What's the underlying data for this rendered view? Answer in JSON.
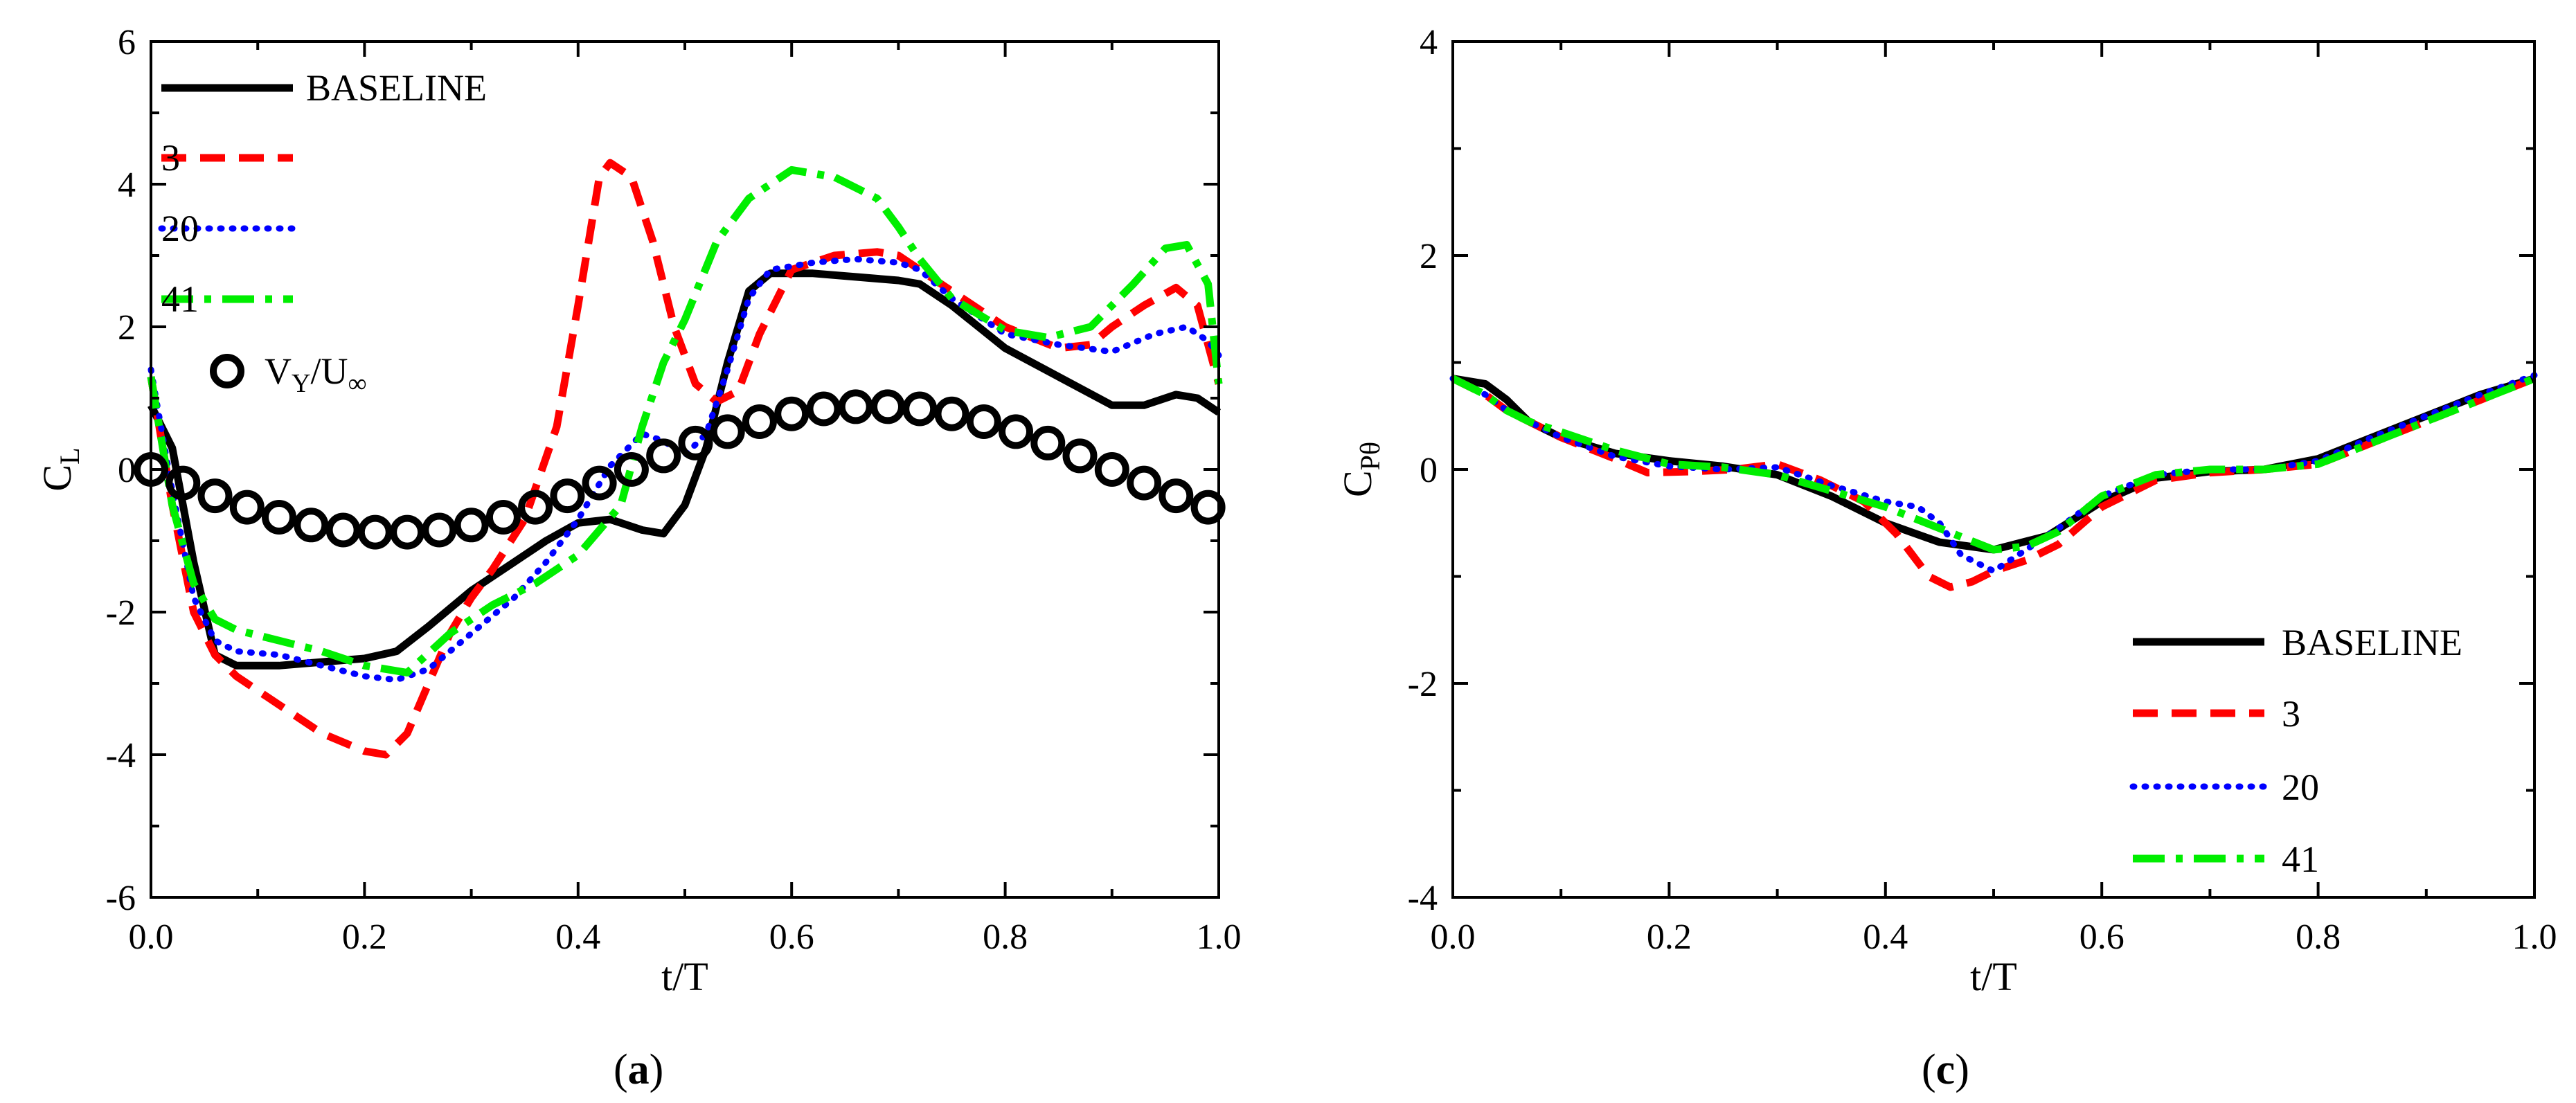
{
  "chart_data": [
    {
      "type": "line",
      "panel_label": "(a)",
      "panel_letter": "a",
      "xlabel": "t/T",
      "ylabel": "C",
      "ylabel_sub": "L",
      "xlim": [
        0,
        1
      ],
      "ylim": [
        -6,
        6
      ],
      "xticks": [
        0,
        0.2,
        0.4,
        0.6,
        0.8,
        1.0
      ],
      "xtick_labels": [
        "0.0",
        "0.2",
        "0.4",
        "0.6",
        "0.8",
        "1.0"
      ],
      "yticks": [
        -6,
        -4,
        -2,
        0,
        2,
        4,
        6
      ],
      "ytick_labels": [
        "-6",
        "-4",
        "-2",
        "0",
        "2",
        "4",
        "6"
      ],
      "legend_position": "top-left",
      "series": [
        {
          "name": "BASELINE",
          "color": "#000000",
          "style": "solid",
          "x": [
            0,
            0.02,
            0.04,
            0.06,
            0.08,
            0.12,
            0.16,
            0.2,
            0.23,
            0.26,
            0.3,
            0.34,
            0.37,
            0.4,
            0.43,
            0.46,
            0.48,
            0.5,
            0.52,
            0.54,
            0.56,
            0.58,
            0.62,
            0.66,
            0.7,
            0.72,
            0.75,
            0.8,
            0.85,
            0.9,
            0.93,
            0.96,
            0.98,
            1.0
          ],
          "y": [
            0.9,
            0.3,
            -1.3,
            -2.6,
            -2.75,
            -2.75,
            -2.7,
            -2.65,
            -2.55,
            -2.2,
            -1.7,
            -1.3,
            -1.0,
            -0.75,
            -0.7,
            -0.85,
            -0.9,
            -0.5,
            0.3,
            1.5,
            2.5,
            2.75,
            2.75,
            2.7,
            2.65,
            2.6,
            2.3,
            1.7,
            1.3,
            0.9,
            0.9,
            1.05,
            1.0,
            0.8
          ]
        },
        {
          "name": "3",
          "color": "#ff0000",
          "style": "dashed",
          "x": [
            0,
            0.02,
            0.04,
            0.06,
            0.08,
            0.12,
            0.16,
            0.2,
            0.22,
            0.24,
            0.26,
            0.28,
            0.3,
            0.32,
            0.35,
            0.38,
            0.4,
            0.42,
            0.43,
            0.45,
            0.47,
            0.49,
            0.51,
            0.53,
            0.55,
            0.57,
            0.6,
            0.64,
            0.68,
            0.7,
            0.72,
            0.75,
            0.8,
            0.85,
            0.88,
            0.9,
            0.93,
            0.96,
            0.98,
            1.0
          ],
          "y": [
            1.3,
            -0.5,
            -2.0,
            -2.6,
            -2.9,
            -3.3,
            -3.7,
            -3.95,
            -4.0,
            -3.7,
            -3.0,
            -2.3,
            -1.8,
            -1.4,
            -0.7,
            0.6,
            2.3,
            4.1,
            4.3,
            4.1,
            3.2,
            2.0,
            1.2,
            0.95,
            1.1,
            1.9,
            2.8,
            3.0,
            3.05,
            3.0,
            2.8,
            2.5,
            2.0,
            1.7,
            1.75,
            2.0,
            2.3,
            2.55,
            2.3,
            1.2
          ]
        },
        {
          "name": "20",
          "color": "#0000ff",
          "style": "dotted",
          "x": [
            0,
            0.02,
            0.04,
            0.06,
            0.08,
            0.12,
            0.16,
            0.2,
            0.23,
            0.26,
            0.3,
            0.34,
            0.37,
            0.4,
            0.43,
            0.46,
            0.48,
            0.5,
            0.52,
            0.54,
            0.56,
            0.58,
            0.62,
            0.66,
            0.7,
            0.72,
            0.75,
            0.8,
            0.85,
            0.9,
            0.94,
            0.97,
            0.99,
            1.0
          ],
          "y": [
            1.4,
            -0.3,
            -1.8,
            -2.4,
            -2.55,
            -2.6,
            -2.75,
            -2.9,
            -2.95,
            -2.8,
            -2.3,
            -1.8,
            -1.3,
            -0.7,
            0.05,
            0.5,
            0.4,
            0.2,
            0.5,
            1.4,
            2.4,
            2.8,
            2.9,
            2.95,
            2.9,
            2.8,
            2.4,
            1.9,
            1.75,
            1.65,
            1.9,
            2.0,
            1.8,
            1.6
          ]
        },
        {
          "name": "41",
          "color": "#00ee00",
          "style": "dashdot",
          "x": [
            0,
            0.02,
            0.04,
            0.06,
            0.08,
            0.12,
            0.16,
            0.2,
            0.24,
            0.28,
            0.32,
            0.36,
            0.4,
            0.44,
            0.46,
            0.48,
            0.5,
            0.53,
            0.56,
            0.6,
            0.64,
            0.68,
            0.7,
            0.72,
            0.75,
            0.8,
            0.84,
            0.88,
            0.92,
            0.95,
            0.97,
            0.99,
            1.0
          ],
          "y": [
            1.3,
            -0.5,
            -1.6,
            -2.1,
            -2.25,
            -2.4,
            -2.55,
            -2.75,
            -2.85,
            -2.3,
            -1.9,
            -1.6,
            -1.2,
            -0.5,
            0.6,
            1.5,
            2.1,
            3.2,
            3.8,
            4.2,
            4.1,
            3.8,
            3.4,
            2.95,
            2.4,
            1.95,
            1.85,
            2.0,
            2.6,
            3.1,
            3.15,
            2.6,
            1.2
          ]
        },
        {
          "name": "V<sub>Y</sub>/U<sub>∞</sub>",
          "label_main": "V",
          "label_sub1": "Y",
          "label_mid": "/U",
          "label_sub2": "∞",
          "color": "#000000",
          "style": "circles",
          "x": [
            0,
            0.03,
            0.06,
            0.09,
            0.12,
            0.15,
            0.18,
            0.21,
            0.24,
            0.27,
            0.3,
            0.33,
            0.36,
            0.39,
            0.42,
            0.45,
            0.48,
            0.51,
            0.54,
            0.57,
            0.6,
            0.63,
            0.66,
            0.69,
            0.72,
            0.75,
            0.78,
            0.81,
            0.84,
            0.87,
            0.9,
            0.93,
            0.96,
            0.99
          ],
          "y": [
            0.0,
            -0.19,
            -0.37,
            -0.53,
            -0.67,
            -0.78,
            -0.85,
            -0.88,
            -0.88,
            -0.85,
            -0.78,
            -0.67,
            -0.53,
            -0.37,
            -0.19,
            -0.0,
            0.19,
            0.37,
            0.53,
            0.67,
            0.78,
            0.85,
            0.88,
            0.88,
            0.85,
            0.78,
            0.67,
            0.53,
            0.37,
            0.19,
            0.0,
            -0.19,
            -0.37,
            -0.53
          ]
        }
      ]
    },
    {
      "type": "line",
      "panel_label": "(c)",
      "panel_letter": "c",
      "xlabel": "t/T",
      "ylabel": "C",
      "ylabel_sub": "Pθ",
      "xlim": [
        0,
        1
      ],
      "ylim": [
        -4,
        4
      ],
      "xticks": [
        0,
        0.2,
        0.4,
        0.6,
        0.8,
        1.0
      ],
      "xtick_labels": [
        "0.0",
        "0.2",
        "0.4",
        "0.6",
        "0.8",
        "1.0"
      ],
      "yticks": [
        -4,
        -2,
        0,
        2,
        4
      ],
      "ytick_labels": [
        "-4",
        "-2",
        "0",
        "2",
        "4"
      ],
      "legend_position": "bottom-right",
      "series": [
        {
          "name": "BASELINE",
          "color": "#000000",
          "style": "solid",
          "x": [
            0,
            0.03,
            0.05,
            0.07,
            0.1,
            0.15,
            0.2,
            0.25,
            0.3,
            0.35,
            0.4,
            0.45,
            0.5,
            0.55,
            0.6,
            0.65,
            0.7,
            0.75,
            0.8,
            0.85,
            0.9,
            0.95,
            1.0
          ],
          "y": [
            0.85,
            0.8,
            0.65,
            0.45,
            0.3,
            0.15,
            0.08,
            0.03,
            -0.05,
            -0.25,
            -0.5,
            -0.68,
            -0.75,
            -0.62,
            -0.3,
            -0.08,
            -0.02,
            0.0,
            0.1,
            0.3,
            0.5,
            0.7,
            0.85
          ]
        },
        {
          "name": "3",
          "color": "#ff0000",
          "style": "dashed",
          "x": [
            0,
            0.03,
            0.05,
            0.07,
            0.1,
            0.15,
            0.18,
            0.22,
            0.26,
            0.3,
            0.34,
            0.38,
            0.41,
            0.44,
            0.46,
            0.48,
            0.5,
            0.53,
            0.56,
            0.6,
            0.65,
            0.7,
            0.75,
            0.8,
            0.85,
            0.9,
            0.95,
            1.0
          ],
          "y": [
            0.85,
            0.7,
            0.55,
            0.45,
            0.3,
            0.1,
            -0.03,
            -0.02,
            0.0,
            0.05,
            -0.1,
            -0.3,
            -0.6,
            -1.0,
            -1.1,
            -1.05,
            -0.95,
            -0.85,
            -0.7,
            -0.35,
            -0.1,
            -0.03,
            0.0,
            0.05,
            0.25,
            0.45,
            0.65,
            0.85
          ]
        },
        {
          "name": "20",
          "color": "#0000ff",
          "style": "dotted",
          "x": [
            0,
            0.03,
            0.05,
            0.07,
            0.1,
            0.15,
            0.2,
            0.25,
            0.3,
            0.35,
            0.4,
            0.43,
            0.45,
            0.47,
            0.5,
            0.53,
            0.56,
            0.6,
            0.65,
            0.7,
            0.75,
            0.8,
            0.85,
            0.9,
            0.95,
            1.0
          ],
          "y": [
            0.85,
            0.7,
            0.55,
            0.45,
            0.3,
            0.12,
            0.03,
            0.0,
            0.02,
            -0.15,
            -0.3,
            -0.35,
            -0.5,
            -0.8,
            -0.95,
            -0.75,
            -0.55,
            -0.25,
            -0.05,
            0.0,
            0.0,
            0.08,
            0.3,
            0.5,
            0.7,
            0.88
          ]
        },
        {
          "name": "41",
          "color": "#00ee00",
          "style": "dashdot",
          "x": [
            0,
            0.03,
            0.05,
            0.07,
            0.1,
            0.15,
            0.2,
            0.25,
            0.3,
            0.35,
            0.4,
            0.45,
            0.5,
            0.53,
            0.56,
            0.6,
            0.65,
            0.7,
            0.75,
            0.8,
            0.85,
            0.9,
            0.95,
            1.0
          ],
          "y": [
            0.85,
            0.7,
            0.55,
            0.45,
            0.35,
            0.18,
            0.05,
            0.02,
            -0.05,
            -0.2,
            -0.35,
            -0.55,
            -0.75,
            -0.72,
            -0.58,
            -0.25,
            -0.05,
            0.0,
            0.0,
            0.05,
            0.25,
            0.45,
            0.65,
            0.85
          ]
        }
      ]
    }
  ]
}
